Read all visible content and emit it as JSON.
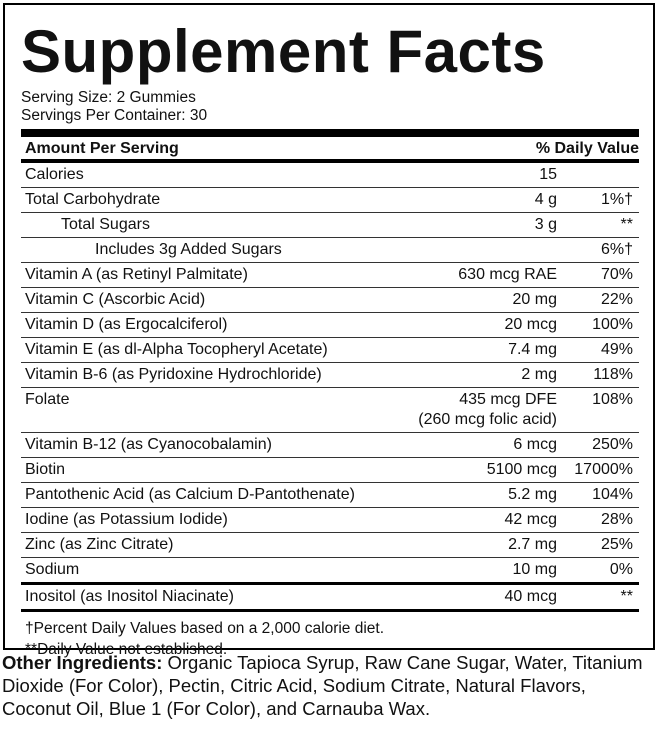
{
  "header": {
    "title": "Supplement Facts",
    "serving_size": "Serving Size: 2 Gummies",
    "servings_per_container": "Servings Per Container: 30"
  },
  "table": {
    "columns": [
      "Amount Per Serving",
      "% Daily Value"
    ],
    "rows": [
      {
        "name": "Calories",
        "amount": "15",
        "dv": ""
      },
      {
        "name": "Total Carbohydrate",
        "amount": "4 g",
        "dv": "1%†"
      },
      {
        "name": "Total Sugars",
        "amount": "3 g",
        "dv": "**"
      },
      {
        "name": "Includes 3g Added Sugars",
        "amount": "",
        "dv": "6%†"
      },
      {
        "name": "Vitamin A (as Retinyl Palmitate)",
        "amount": "630 mcg RAE",
        "dv": "70%"
      },
      {
        "name": "Vitamin C (Ascorbic Acid)",
        "amount": "20 mg",
        "dv": "22%"
      },
      {
        "name": "Vitamin D (as Ergocalciferol)",
        "amount": "20 mcg",
        "dv": "100%"
      },
      {
        "name": "Vitamin E (as dl-Alpha Tocopheryl Acetate)",
        "amount": "7.4 mg",
        "dv": "49%"
      },
      {
        "name": "Vitamin B-6 (as Pyridoxine Hydrochloride)",
        "amount": "2 mg",
        "dv": "118%"
      },
      {
        "name": "Folate",
        "amount": "435 mcg DFE",
        "amount_note": "(260 mcg folic acid)",
        "dv": "108%"
      },
      {
        "name": "Vitamin B-12 (as Cyanocobalamin)",
        "amount": "6 mcg",
        "dv": "250%"
      },
      {
        "name": "Biotin",
        "amount": "5100 mcg",
        "dv": "17000%"
      },
      {
        "name": "Pantothenic Acid (as Calcium D-Pantothenate)",
        "amount": "5.2 mg",
        "dv": "104%"
      },
      {
        "name": "Iodine (as Potassium Iodide)",
        "amount": "42 mcg",
        "dv": "28%"
      },
      {
        "name": "Zinc (as Zinc Citrate)",
        "amount": "2.7 mg",
        "dv": "25%"
      },
      {
        "name": "Sodium",
        "amount": "10 mg",
        "dv": "0%"
      },
      {
        "name": "Inositol (as Inositol Niacinate)",
        "amount": "40 mcg",
        "dv": "**"
      }
    ]
  },
  "footnotes": [
    "†Percent Daily Values based on a 2,000 calorie diet.",
    "**Daily Value not established."
  ],
  "other_ingredients": {
    "label": "Other Ingredients:",
    "text": "Organic Tapioca Syrup, Raw Cane Sugar, Water, Titanium Dioxide (For Color), Pectin, Citric Acid, Sodium Citrate, Natural Flavors, Coconut Oil, Blue 1 (For Color), and Carnauba Wax."
  }
}
